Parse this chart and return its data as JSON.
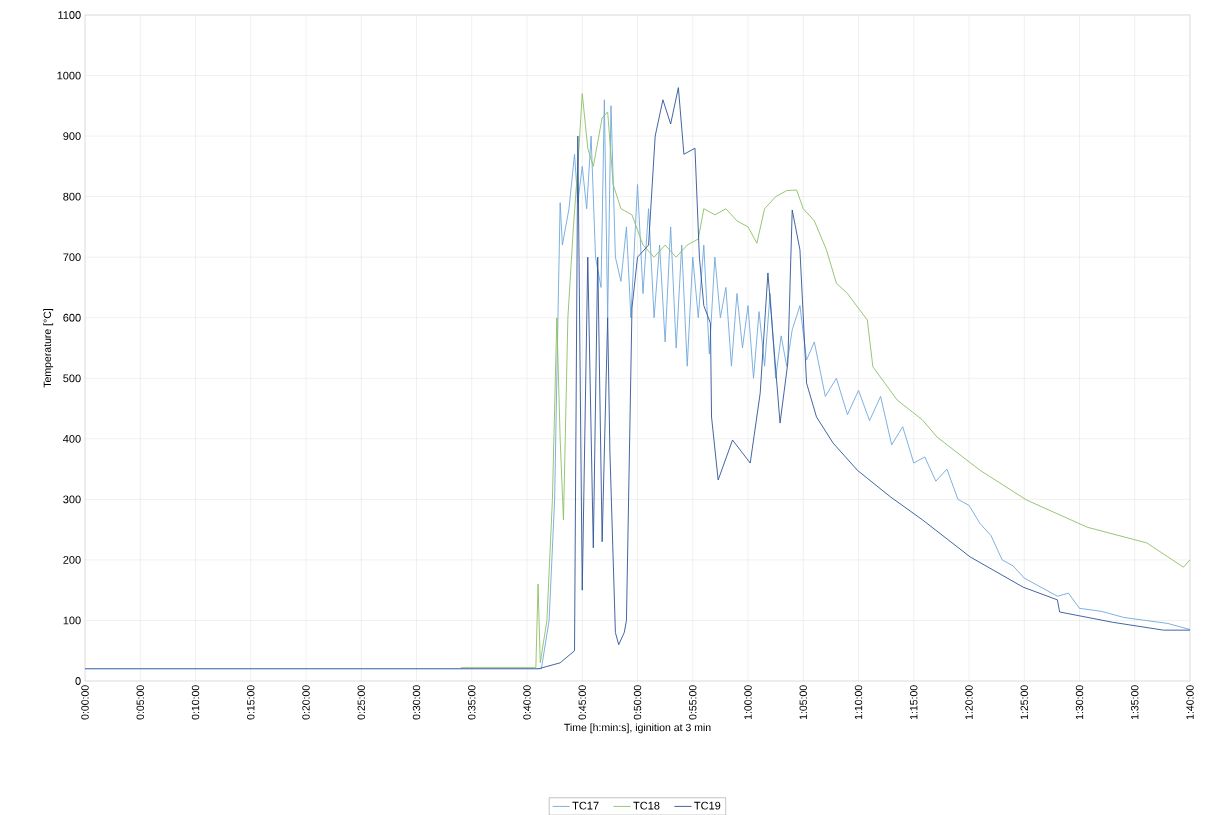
{
  "chart_data": {
    "type": "line",
    "xlabel": "Time [h:min:s], iginition at 3 min",
    "ylabel": "Temperature [°C]",
    "xlim": [
      0,
      100
    ],
    "ylim": [
      0,
      1100
    ],
    "xticks": [
      {
        "value": 0,
        "label": "0:00:00"
      },
      {
        "value": 5,
        "label": "0:05:00"
      },
      {
        "value": 10,
        "label": "0:10:00"
      },
      {
        "value": 15,
        "label": "0:15:00"
      },
      {
        "value": 20,
        "label": "0:20:00"
      },
      {
        "value": 25,
        "label": "0:25:00"
      },
      {
        "value": 30,
        "label": "0:30:00"
      },
      {
        "value": 35,
        "label": "0:35:00"
      },
      {
        "value": 40,
        "label": "0:40:00"
      },
      {
        "value": 45,
        "label": "0:45:00"
      },
      {
        "value": 50,
        "label": "0:50:00"
      },
      {
        "value": 55,
        "label": "0:55:00"
      },
      {
        "value": 60,
        "label": "1:00:00"
      },
      {
        "value": 65,
        "label": "1:05:00"
      },
      {
        "value": 70,
        "label": "1:10:00"
      },
      {
        "value": 75,
        "label": "1:15:00"
      },
      {
        "value": 80,
        "label": "1:20:00"
      },
      {
        "value": 85,
        "label": "1:25:00"
      },
      {
        "value": 90,
        "label": "1:30:00"
      },
      {
        "value": 95,
        "label": "1:35:00"
      },
      {
        "value": 100,
        "label": "1:40:00"
      }
    ],
    "yticks": [
      0,
      100,
      200,
      300,
      400,
      500,
      600,
      700,
      800,
      900,
      1000,
      1100
    ],
    "grid": true,
    "legend": "bottom",
    "marker": "none",
    "line_style": "solid",
    "series": [
      {
        "name": "TC17",
        "color": "#6fa8dc",
        "x": [
          0,
          41.3,
          42,
          42.5,
          42.8,
          43,
          43.2,
          43.8,
          44.3,
          44.6,
          45,
          45.4,
          45.8,
          46.2,
          46.7,
          47,
          47.3,
          47.6,
          48,
          48.5,
          49,
          49.4,
          50,
          50.5,
          51,
          51.5,
          52,
          52.5,
          53,
          53.5,
          54,
          54.5,
          55,
          55.5,
          56,
          56.5,
          57,
          57.5,
          58,
          58.5,
          59,
          59.5,
          60,
          60.5,
          61,
          61.5,
          62,
          62.5,
          63,
          63.5,
          64,
          64.7,
          65.3,
          66,
          67,
          68,
          69,
          70,
          71,
          72,
          73,
          74,
          75,
          76,
          77,
          78,
          79,
          80,
          81,
          82,
          83,
          84,
          85,
          86,
          87,
          88,
          89,
          90,
          92,
          94,
          96,
          98,
          100
        ],
        "values": [
          20,
          20,
          100,
          300,
          600,
          790,
          720,
          780,
          870,
          790,
          850,
          780,
          900,
          700,
          650,
          960,
          600,
          950,
          700,
          660,
          750,
          600,
          820,
          640,
          780,
          600,
          720,
          560,
          750,
          550,
          720,
          520,
          700,
          600,
          720,
          540,
          700,
          600,
          650,
          520,
          640,
          550,
          620,
          500,
          610,
          520,
          640,
          500,
          570,
          520,
          580,
          620,
          530,
          560,
          470,
          500,
          440,
          480,
          430,
          470,
          390,
          420,
          360,
          370,
          330,
          350,
          300,
          290,
          260,
          240,
          200,
          190,
          170,
          160,
          150,
          140,
          145,
          120,
          115,
          105,
          100,
          95,
          85
        ]
      },
      {
        "name": "TC18",
        "color": "#8cc063",
        "x": [
          34,
          40.8,
          41,
          41.2,
          41.8,
          42.3,
          42.7,
          43,
          43.3,
          43.7,
          44.2,
          44.6,
          45,
          45.5,
          46,
          46.8,
          47.3,
          47.8,
          48.5,
          49.5,
          50.5,
          51.5,
          52.5,
          53.5,
          54.5,
          55.5,
          56,
          57,
          58,
          59,
          60,
          60.8,
          61.5,
          62.5,
          63.5,
          64.4,
          65,
          66,
          67.1,
          68,
          69,
          70.8,
          71.3,
          73.5,
          75.8,
          77.1,
          81,
          85.2,
          90.7,
          96.1,
          99.4,
          100
        ],
        "values": [
          22,
          22,
          160,
          30,
          100,
          300,
          600,
          400,
          266,
          600,
          750,
          850,
          970,
          880,
          850,
          930,
          940,
          820,
          780,
          770,
          720,
          700,
          720,
          700,
          720,
          730,
          780,
          770,
          780,
          760,
          750,
          723,
          780,
          800,
          810,
          811,
          780,
          760,
          712,
          657,
          640,
          596,
          519,
          464,
          431,
          403,
          348,
          299,
          254,
          228,
          188,
          200
        ]
      },
      {
        "name": "TC19",
        "color": "#2f5597",
        "x": [
          0,
          41,
          43,
          44.3,
          44.6,
          45,
          45.5,
          46,
          46.4,
          46.8,
          47.3,
          47.5,
          48,
          48.3,
          48.8,
          49,
          49.5,
          50,
          51,
          51.6,
          52.3,
          53,
          53.7,
          54.2,
          55.2,
          55.6,
          56.0,
          56.6,
          56.7,
          57.3,
          58.6,
          60.2,
          61.1,
          61.8,
          62.9,
          63.6,
          64,
          64.7,
          65.3,
          66.2,
          67.7,
          69.9,
          72.9,
          75.8,
          80.1,
          84.9,
          88,
          88.2,
          93,
          97.6,
          100
        ],
        "values": [
          20,
          20,
          30,
          50,
          900,
          150,
          700,
          220,
          700,
          230,
          600,
          380,
          80,
          60,
          80,
          100,
          616,
          700,
          720,
          900,
          960,
          920,
          980,
          870,
          880,
          700,
          620,
          591,
          436,
          332,
          398,
          360,
          475,
          674,
          426,
          525,
          778,
          712,
          492,
          436,
          393,
          348,
          304,
          266,
          205,
          155,
          134,
          114,
          97,
          84,
          84
        ]
      }
    ]
  }
}
